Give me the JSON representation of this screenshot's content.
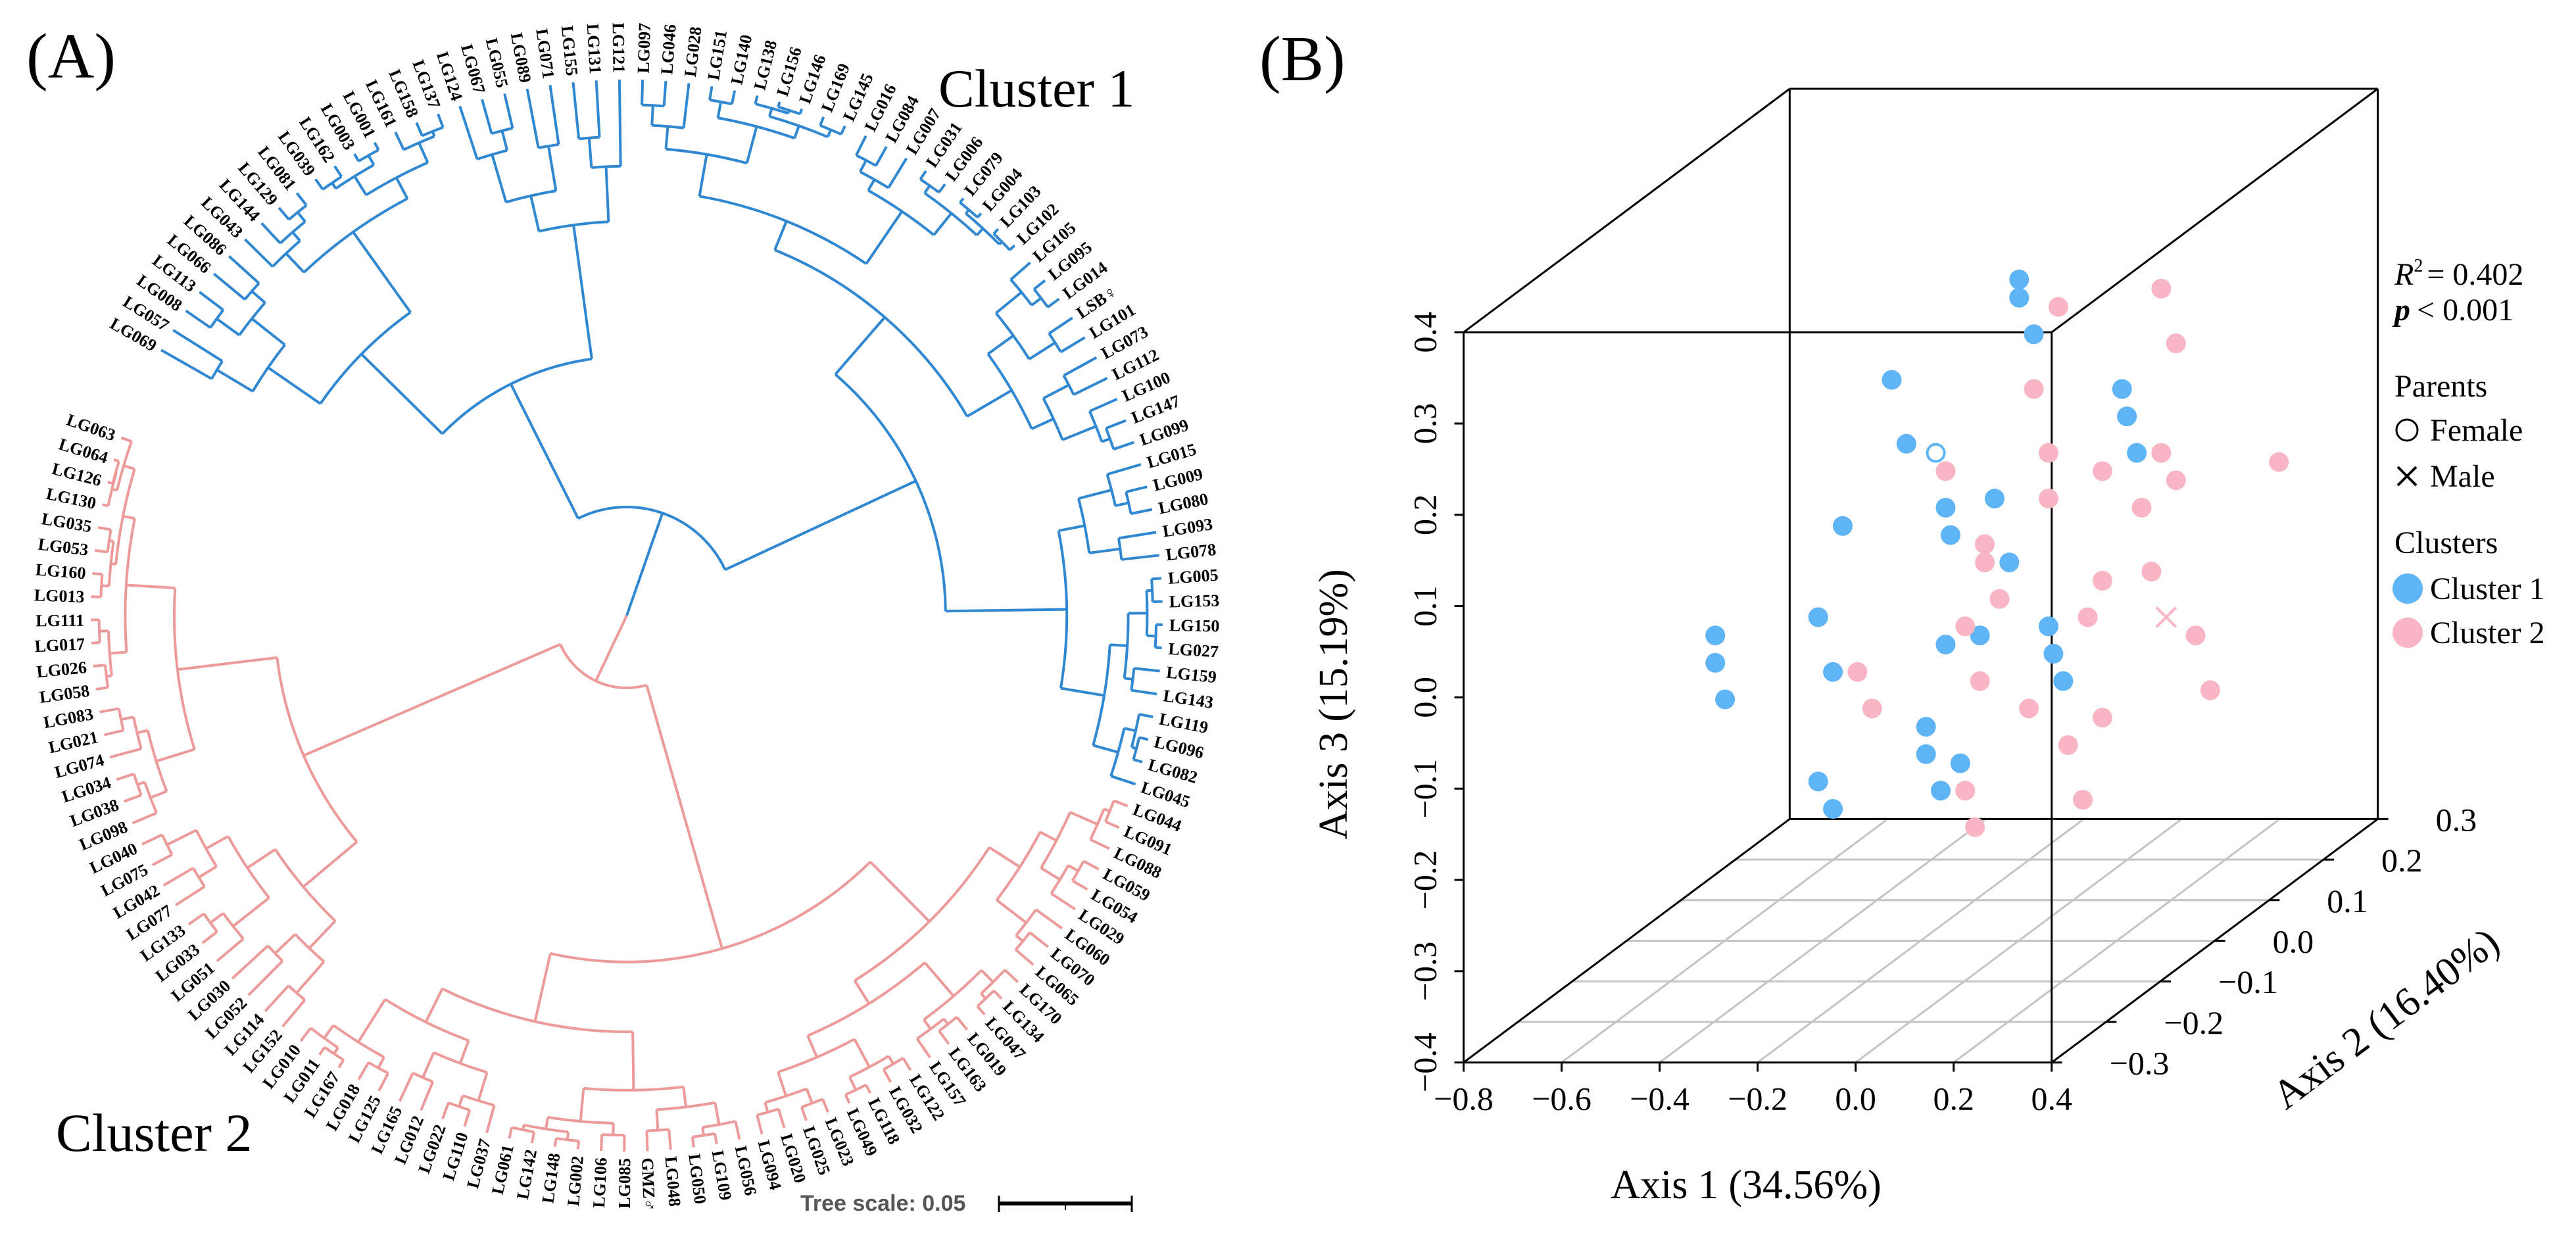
{
  "panel_labels": {
    "a": "(A)",
    "b": "(B)"
  },
  "chart_data": [
    {
      "type": "dendrogram",
      "layout": "circular",
      "clusters": [
        {
          "name": "Cluster 1",
          "color": "#2f88d1",
          "leaves": [
            "LG069",
            "LG057",
            "LG008",
            "LG113",
            "LG066",
            "LG086",
            "LG043",
            "LG144",
            "LG129",
            "LG081",
            "LG039",
            "LG162",
            "LG003",
            "LG001",
            "LG161",
            "LG158",
            "LG137",
            "LG124",
            "LG067",
            "LG055",
            "LG089",
            "LG071",
            "LG155",
            "LG131",
            "LG121",
            "LG097",
            "LG046",
            "LG028",
            "LG151",
            "LG140",
            "LG138",
            "LG156",
            "LG146",
            "LG169",
            "LG145",
            "LG016",
            "LG084",
            "LG007",
            "LG031",
            "LG006",
            "LG079",
            "LG004",
            "LG103",
            "LG102",
            "LG105",
            "LG095",
            "LG014",
            "LSB♀",
            "LG101",
            "LG073",
            "LG112",
            "LG100",
            "LG147",
            "LG099",
            "LG015",
            "LG009",
            "LG080",
            "LG093",
            "LG078",
            "LG005",
            "LG153",
            "LG150",
            "LG027",
            "LG159",
            "LG143",
            "LG119",
            "LG096",
            "LG082",
            "LG045"
          ]
        },
        {
          "name": "Cluster 2",
          "color": "#ec9a9a",
          "leaves": [
            "LG044",
            "LG091",
            "LG088",
            "LG059",
            "LG054",
            "LG029",
            "LG060",
            "LG070",
            "LG065",
            "LG170",
            "LG134",
            "LG047",
            "LG019",
            "LG163",
            "LG157",
            "LG122",
            "LG032",
            "LG118",
            "LG049",
            "LG023",
            "LG025",
            "LG020",
            "LG094",
            "LG056",
            "LG109",
            "LG050",
            "LG048",
            "GMZ♂",
            "LG085",
            "LG106",
            "LG002",
            "LG148",
            "LG142",
            "LG061",
            "LG037",
            "LG110",
            "LG022",
            "LG012",
            "LG165",
            "LG125",
            "LG018",
            "LG167",
            "LG011",
            "LG010",
            "LG152",
            "LG114",
            "LG052",
            "LG030",
            "LG051",
            "LG033",
            "LG133",
            "LG077",
            "LG042",
            "LG075",
            "LG040",
            "LG098",
            "LG038",
            "LG034",
            "LG074",
            "LG021",
            "LG083",
            "LG058",
            "LG026",
            "LG017",
            "LG111",
            "LG013",
            "LG160",
            "LG053",
            "LG035",
            "LG130",
            "LG126",
            "LG064",
            "LG063"
          ]
        }
      ],
      "tree_scale": {
        "label": "Tree scale: 0.05",
        "value": 0.05
      }
    },
    {
      "type": "scatter3d",
      "title": "",
      "axes": {
        "x": {
          "label": "Axis 1 (34.56%)",
          "range": [
            -0.8,
            0.4
          ],
          "ticks": [
            "−0.8",
            "−0.6",
            "−0.4",
            "−0.2",
            "0.0",
            "0.2",
            "0.4"
          ]
        },
        "y": {
          "label": "Axis 2 (16.40%)",
          "range": [
            -0.3,
            0.3
          ],
          "ticks": [
            "−0.3",
            "−0.2",
            "−0.1",
            "0.0",
            "0.1",
            "0.2",
            "0.3"
          ]
        },
        "z": {
          "label": "Axis 3 (15.19%)",
          "range": [
            -0.4,
            0.4
          ],
          "ticks": [
            "−0.4",
            "−0.3",
            "−0.2",
            "−0.1",
            "0.0",
            "0.1",
            "0.2",
            "0.3",
            "0.4"
          ]
        }
      },
      "grid": "floor",
      "series": [
        {
          "name": "Cluster 1",
          "color": "#5fb4f6",
          "points": [
            [
              -0.11,
              0.1,
              0.28
            ],
            [
              -0.11,
              0.1,
              0.26
            ],
            [
              -0.08,
              0.1,
              0.22
            ],
            [
              -0.37,
              0.1,
              0.17
            ],
            [
              -0.34,
              0.1,
              0.1
            ],
            [
              -0.47,
              0.1,
              0.01
            ],
            [
              -0.26,
              0.1,
              0.03
            ],
            [
              -0.25,
              0.1,
              0.0
            ],
            [
              -0.16,
              0.1,
              0.04
            ],
            [
              -0.13,
              0.1,
              -0.03
            ],
            [
              0.1,
              0.1,
              0.16
            ],
            [
              0.11,
              0.1,
              0.13
            ],
            [
              0.13,
              0.1,
              0.09
            ],
            [
              -0.52,
              0.1,
              -0.09
            ],
            [
              -0.73,
              0.1,
              -0.11
            ],
            [
              -0.73,
              0.1,
              -0.14
            ],
            [
              -0.71,
              0.1,
              -0.18
            ],
            [
              -0.49,
              0.1,
              -0.15
            ],
            [
              -0.26,
              0.1,
              -0.12
            ],
            [
              -0.19,
              0.1,
              -0.11
            ],
            [
              -0.05,
              0.1,
              -0.1
            ],
            [
              -0.04,
              0.1,
              -0.13
            ],
            [
              -0.02,
              0.1,
              -0.16
            ],
            [
              -0.3,
              0.1,
              -0.21
            ],
            [
              -0.3,
              0.1,
              -0.24
            ],
            [
              -0.23,
              0.1,
              -0.25
            ],
            [
              -0.27,
              0.1,
              -0.28
            ],
            [
              -0.52,
              0.1,
              -0.27
            ],
            [
              -0.49,
              0.1,
              -0.3
            ]
          ]
        },
        {
          "name": "Cluster 2",
          "color": "#f8b5c4",
          "points": [
            [
              -0.03,
              0.1,
              0.25
            ],
            [
              0.18,
              0.1,
              0.27
            ],
            [
              0.21,
              0.1,
              0.21
            ],
            [
              -0.08,
              0.1,
              0.16
            ],
            [
              -0.05,
              0.1,
              0.09
            ],
            [
              -0.05,
              0.1,
              0.04
            ],
            [
              -0.26,
              0.1,
              0.07
            ],
            [
              0.06,
              0.1,
              0.07
            ],
            [
              0.18,
              0.1,
              0.09
            ],
            [
              0.21,
              0.1,
              0.06
            ],
            [
              0.14,
              0.1,
              0.03
            ],
            [
              0.42,
              0.1,
              0.08
            ],
            [
              -0.18,
              0.1,
              -0.01
            ],
            [
              -0.18,
              0.1,
              -0.03
            ],
            [
              0.06,
              0.1,
              -0.05
            ],
            [
              0.16,
              0.1,
              -0.04
            ],
            [
              -0.15,
              0.1,
              -0.07
            ],
            [
              0.03,
              0.1,
              -0.09
            ],
            [
              0.25,
              0.1,
              -0.11
            ],
            [
              -0.22,
              0.1,
              -0.1
            ],
            [
              -0.44,
              0.1,
              -0.15
            ],
            [
              -0.41,
              0.1,
              -0.19
            ],
            [
              -0.19,
              0.1,
              -0.16
            ],
            [
              -0.09,
              0.1,
              -0.19
            ],
            [
              0.06,
              0.1,
              -0.2
            ],
            [
              0.28,
              0.1,
              -0.17
            ],
            [
              -0.01,
              0.1,
              -0.23
            ],
            [
              -0.22,
              0.1,
              -0.28
            ],
            [
              0.02,
              0.1,
              -0.29
            ],
            [
              -0.2,
              0.1,
              -0.32
            ]
          ]
        }
      ],
      "parents": {
        "title": "Parents",
        "female": {
          "label": "Female",
          "cluster": "Cluster 1",
          "point": [
            -0.28,
            0.1,
            0.09
          ]
        },
        "male": {
          "label": "Male",
          "cluster": "Cluster 2",
          "point": [
            0.19,
            0.1,
            -0.09
          ]
        }
      },
      "stats": {
        "r_symbol": "R",
        "r_exponent": "2",
        "r_value": "= 0.402",
        "p_symbol": "p",
        "p_value": "< 0.001"
      },
      "legend": {
        "clusters_title": "Clusters",
        "placement": "right"
      }
    }
  ]
}
